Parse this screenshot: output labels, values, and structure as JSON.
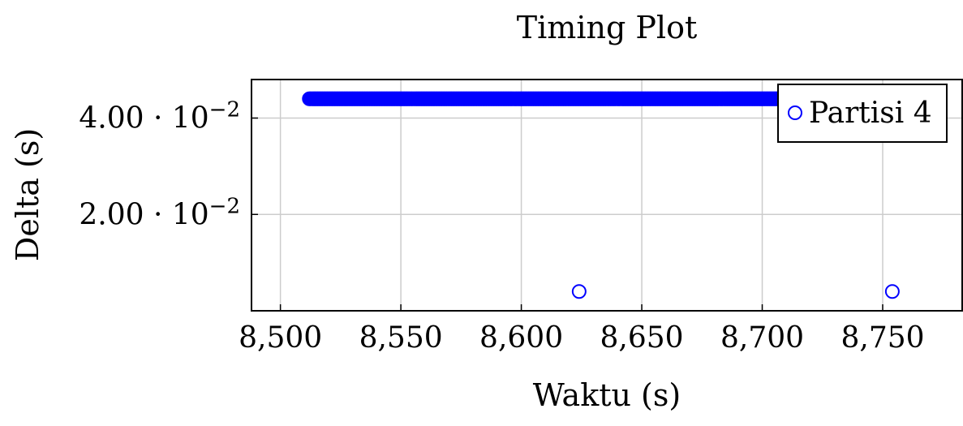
{
  "chart_data": {
    "type": "scatter",
    "title": "Timing Plot",
    "xlabel": "Waktu (s)",
    "ylabel": "Delta (s)",
    "xlim": [
      8488,
      8783
    ],
    "ylim": [
      0.0,
      0.048
    ],
    "x_ticks": [
      {
        "value": 8500,
        "label": "8,500"
      },
      {
        "value": 8550,
        "label": "8,550"
      },
      {
        "value": 8600,
        "label": "8,600"
      },
      {
        "value": 8650,
        "label": "8,650"
      },
      {
        "value": 8700,
        "label": "8,700"
      },
      {
        "value": 8750,
        "label": "8,750"
      }
    ],
    "y_ticks": [
      {
        "value": 0.02,
        "mantissa": "2.00",
        "exponent": "−2"
      },
      {
        "value": 0.04,
        "mantissa": "4.00",
        "exponent": "−2"
      }
    ],
    "grid": true,
    "legend_position": "top-right",
    "series": [
      {
        "name": "Partisi 4",
        "color": "#0000ff",
        "marker": "open-circle",
        "dense_run": {
          "x_start": 8512,
          "x_end": 8717,
          "step": 0.5,
          "y": 0.044
        },
        "points": [
          {
            "x": 8624,
            "y": 0.004
          },
          {
            "x": 8754,
            "y": 0.004
          }
        ]
      }
    ]
  }
}
